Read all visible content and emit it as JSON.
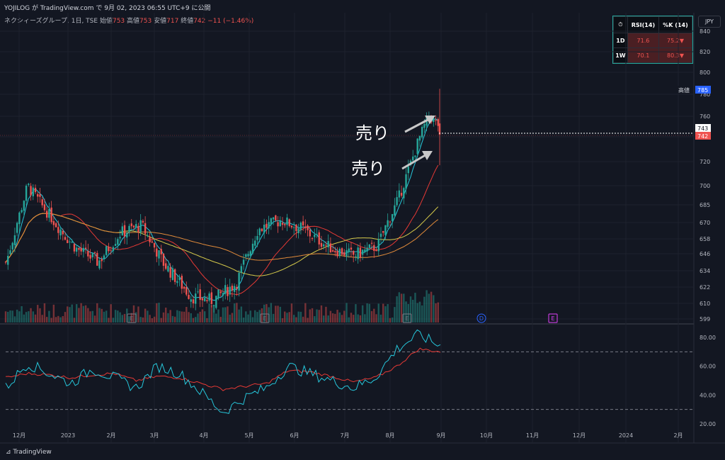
{
  "header": {
    "publish_line": "YOJILOG が TradingView.com で 9月 02, 2023 06:55 UTC+9 に公開",
    "symbol_info": "ネクシィーズグループ, 1日, TSE",
    "open_label": "始値",
    "open": "753",
    "high_label": "高値",
    "high": "753",
    "low_label": "安値",
    "low": "717",
    "close_label": "終値",
    "close": "742",
    "change": "−11 (−1.46%)"
  },
  "currency_button": "JPY",
  "indicator_table": {
    "head": [
      "RSI(14)",
      "%K (14)"
    ],
    "rows": [
      {
        "tf": "1D",
        "rsi": "71.6",
        "k": "75.2▼"
      },
      {
        "tf": "1W",
        "rsi": "70.1",
        "k": "80.3▼"
      }
    ]
  },
  "price_labels": {
    "high_tag_label": "高値",
    "high_tag_value": "785",
    "tag_743": "743",
    "tag_742": "742"
  },
  "annotations": [
    "売り",
    "売り"
  ],
  "markers": [
    "E",
    "E",
    "E",
    "D",
    "E"
  ],
  "footer_logo": "TradingView",
  "colors": {
    "up": "#26a69a",
    "down": "#ef5350",
    "bg": "#131722"
  },
  "chart_data": [
    {
      "type": "candlestick",
      "title": "ネクシィーズグループ, 1日, TSE",
      "x_ticks": [
        "12月",
        "2023",
        "2月",
        "3月",
        "4月",
        "5月",
        "6月",
        "7月",
        "8月",
        "9月",
        "10月",
        "11月",
        "12月",
        "2024",
        "2月"
      ],
      "y_ticks": [
        840,
        820,
        800,
        780,
        760,
        740,
        720,
        700,
        685,
        670,
        658,
        646,
        634,
        622,
        610,
        599
      ],
      "ylim": [
        599,
        840
      ],
      "y_scale": "log",
      "close_path": [
        [
          "12月",
          640
        ],
        [
          "12月",
          700
        ],
        [
          "2023",
          670
        ],
        [
          "2023",
          650
        ],
        [
          "2月",
          640
        ],
        [
          "2月",
          662
        ],
        [
          "3月",
          668
        ],
        [
          "3月",
          640
        ],
        [
          "4月",
          615
        ],
        [
          "4月",
          612
        ],
        [
          "5月",
          625
        ],
        [
          "5月",
          665
        ],
        [
          "6月",
          672
        ],
        [
          "6月",
          665
        ],
        [
          "7月",
          650
        ],
        [
          "7月",
          645
        ],
        [
          "8月",
          652
        ],
        [
          "8月",
          690
        ],
        [
          "9月",
          760
        ],
        [
          "9月",
          742
        ]
      ],
      "grid": true
    },
    {
      "type": "line",
      "title": "RSI",
      "y_ticks": [
        80.0,
        60.0,
        40.0,
        20.0
      ],
      "ylim": [
        20,
        85
      ],
      "reference_lines": [
        70,
        30
      ],
      "series": [
        {
          "values": [
            45,
            62,
            55,
            48,
            58,
            52,
            45,
            60,
            55,
            42,
            28,
            38,
            45,
            60,
            55,
            50,
            45,
            52,
            72,
            82,
            74
          ]
        },
        {
          "values": [
            52,
            55,
            54,
            52,
            54,
            55,
            50,
            53,
            52,
            48,
            44,
            46,
            48,
            57,
            56,
            53,
            49,
            52,
            60,
            72,
            70
          ]
        }
      ]
    }
  ]
}
